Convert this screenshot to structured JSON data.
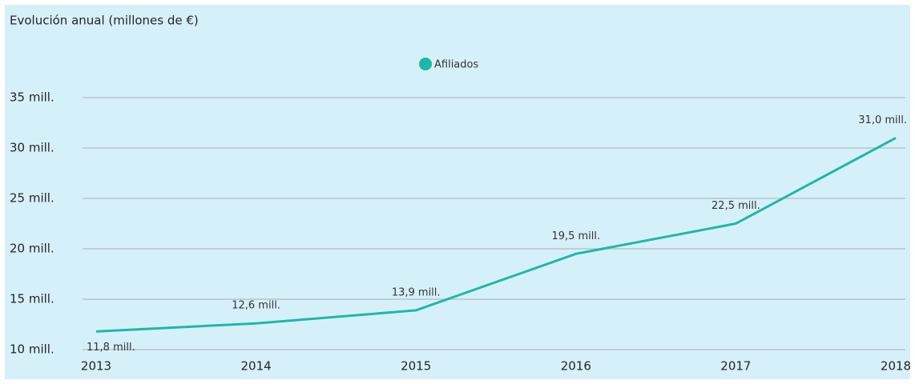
{
  "chart_data": {
    "type": "line",
    "title": "Evolución anual (millones de €)",
    "categories": [
      "2013",
      "2014",
      "2015",
      "2016",
      "2017",
      "2018"
    ],
    "series": [
      {
        "name": "Afiliados",
        "color": "#1cb8a8",
        "values": [
          11.8,
          12.6,
          13.9,
          19.5,
          22.5,
          31.0
        ],
        "value_labels": [
          "11,8 mill.",
          "12,6 mill.",
          "13,9 mill.",
          "19,5 mill.",
          "22,5 mill.",
          "31,0 mill."
        ]
      }
    ],
    "ylim": [
      10,
      35
    ],
    "yticks": [
      {
        "value": 10,
        "label": "10 mill."
      },
      {
        "value": 15,
        "label": "15 mill."
      },
      {
        "value": 20,
        "label": "20 mill."
      },
      {
        "value": 25,
        "label": "25 mill."
      },
      {
        "value": 30,
        "label": "30 mill."
      },
      {
        "value": 35,
        "label": "35 mill."
      }
    ],
    "grid": true,
    "legend": "top"
  }
}
